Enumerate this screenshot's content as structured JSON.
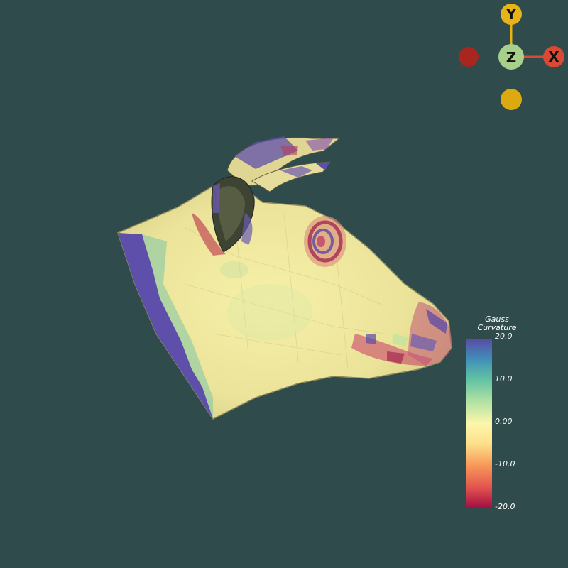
{
  "viewport": {
    "background": "#2f4b4b",
    "object": "cow-head-mesh"
  },
  "orientation_widget": {
    "labels": {
      "x": "X",
      "y": "Y",
      "z": "Z"
    },
    "colors": {
      "x": "#d84a35",
      "y": "#e6b319",
      "z": "#a8d08d",
      "neg_x": "#a8261d",
      "neg_y": "#dcaa10"
    }
  },
  "scalar_bar": {
    "title_line1": "Gauss",
    "title_line2": "Curvature",
    "ticks": [
      "20.0",
      "10.0",
      "0.00",
      "-10.0",
      "-20.0"
    ],
    "range": [
      -20.0,
      20.0
    ],
    "colormap": [
      "#5a4aa6",
      "#3f8fb7",
      "#61c2a4",
      "#b8e3a3",
      "#fbf7ab",
      "#fde08a",
      "#f89c5a",
      "#e1524d",
      "#a10c45"
    ]
  }
}
